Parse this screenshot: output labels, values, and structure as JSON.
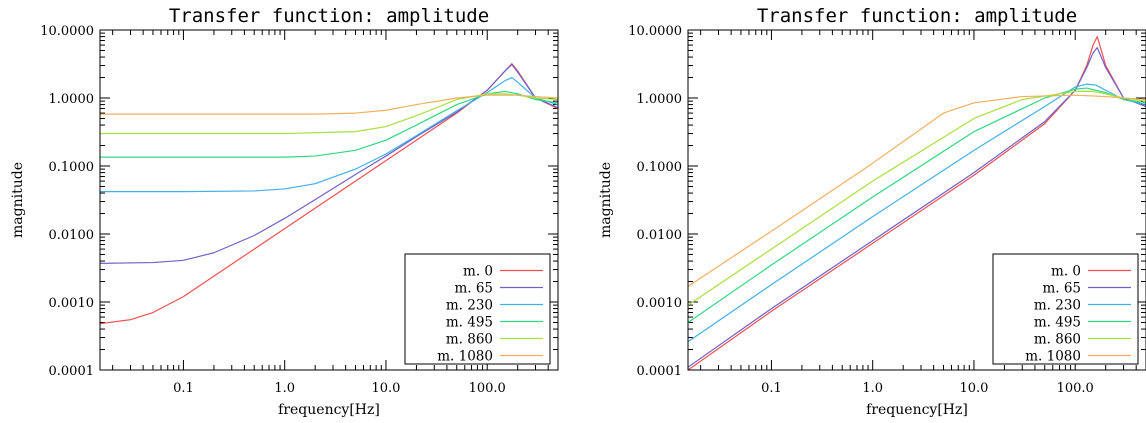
{
  "chart_data": [
    {
      "type": "line",
      "title": "Transfer function: amplitude",
      "xlabel": "frequency[Hz]",
      "ylabel": "magnitude",
      "xscale": "log",
      "yscale": "log",
      "xlim": [
        0.015,
        500
      ],
      "ylim": [
        0.0001,
        10
      ],
      "xticks": [
        "0.1",
        "1.0",
        "10.0",
        "100.0"
      ],
      "yticks": [
        "10.0000",
        "1.0000",
        "0.1000",
        "0.0100",
        "0.0010",
        "0.0001"
      ],
      "grid": false,
      "legend_position": "bottom-right",
      "series": [
        {
          "name": "m. 0",
          "color": "#f05050",
          "x": [
            0.015,
            0.03,
            0.05,
            0.1,
            0.2,
            0.5,
            1,
            2,
            5,
            10,
            20,
            50,
            100,
            150,
            175,
            200,
            300,
            500
          ],
          "y": [
            0.00048,
            0.00055,
            0.0007,
            0.0012,
            0.0024,
            0.006,
            0.012,
            0.024,
            0.06,
            0.12,
            0.24,
            0.6,
            1.3,
            2.5,
            3.2,
            2.5,
            1.0,
            0.7
          ]
        },
        {
          "name": "m. 65",
          "color": "#7060c8",
          "x": [
            0.015,
            0.05,
            0.1,
            0.2,
            0.5,
            1,
            2,
            5,
            10,
            20,
            50,
            100,
            150,
            175,
            200,
            300,
            500
          ],
          "y": [
            0.0037,
            0.0038,
            0.0041,
            0.0053,
            0.0095,
            0.017,
            0.032,
            0.075,
            0.14,
            0.27,
            0.62,
            1.3,
            2.5,
            3.1,
            2.4,
            1.0,
            0.72
          ]
        },
        {
          "name": "m. 230",
          "color": "#40b0e8",
          "x": [
            0.015,
            0.1,
            0.5,
            1,
            2,
            5,
            10,
            20,
            50,
            100,
            150,
            175,
            200,
            300,
            500
          ],
          "y": [
            0.042,
            0.042,
            0.043,
            0.046,
            0.055,
            0.09,
            0.15,
            0.28,
            0.65,
            1.2,
            1.8,
            2.0,
            1.7,
            1.0,
            0.8
          ]
        },
        {
          "name": "m. 495",
          "color": "#30d880",
          "x": [
            0.015,
            1,
            2,
            5,
            10,
            20,
            50,
            100,
            150,
            200,
            300,
            500
          ],
          "y": [
            0.135,
            0.135,
            0.14,
            0.17,
            0.24,
            0.4,
            0.8,
            1.15,
            1.25,
            1.15,
            0.95,
            0.85
          ]
        },
        {
          "name": "m. 860",
          "color": "#a8e040",
          "x": [
            0.015,
            1,
            5,
            10,
            20,
            50,
            100,
            150,
            200,
            300,
            500
          ],
          "y": [
            0.3,
            0.3,
            0.32,
            0.38,
            0.55,
            0.95,
            1.15,
            1.15,
            1.1,
            1.0,
            0.95
          ]
        },
        {
          "name": "m. 1080",
          "color": "#f0b060",
          "x": [
            0.015,
            2,
            5,
            10,
            20,
            50,
            100,
            200,
            300,
            500
          ],
          "y": [
            0.58,
            0.58,
            0.6,
            0.66,
            0.8,
            1.0,
            1.1,
            1.1,
            1.05,
            1.0
          ]
        }
      ]
    },
    {
      "type": "line",
      "title": "Transfer function: amplitude",
      "xlabel": "frequency[Hz]",
      "ylabel": "magnitude",
      "xscale": "log",
      "yscale": "log",
      "xlim": [
        0.015,
        500
      ],
      "ylim": [
        0.0001,
        10
      ],
      "xticks": [
        "0.1",
        "1.0",
        "10.0",
        "100.0"
      ],
      "yticks": [
        "10.0000",
        "1.0000",
        "0.1000",
        "0.0100",
        "0.0010",
        "0.0001"
      ],
      "grid": false,
      "legend_position": "bottom-right",
      "series": [
        {
          "name": "m. 0",
          "color": "#f05050",
          "x": [
            0.015,
            0.1,
            1,
            10,
            50,
            100,
            130,
            150,
            165,
            200,
            300,
            500
          ],
          "y": [
            0.0001,
            0.00073,
            0.0073,
            0.073,
            0.42,
            1.3,
            3.0,
            6.0,
            8.0,
            3.0,
            1.0,
            0.75
          ]
        },
        {
          "name": "m. 65",
          "color": "#7060c8",
          "x": [
            0.015,
            0.1,
            1,
            10,
            50,
            100,
            130,
            150,
            165,
            200,
            300,
            500
          ],
          "y": [
            0.00011,
            0.0008,
            0.008,
            0.08,
            0.45,
            1.3,
            2.8,
            4.6,
            5.5,
            2.8,
            1.0,
            0.75
          ]
        },
        {
          "name": "m. 230",
          "color": "#40b0e8",
          "x": [
            0.015,
            0.1,
            1,
            10,
            50,
            100,
            130,
            160,
            200,
            300,
            500
          ],
          "y": [
            0.00026,
            0.0018,
            0.018,
            0.17,
            0.75,
            1.45,
            1.6,
            1.55,
            1.3,
            0.95,
            0.8
          ]
        },
        {
          "name": "m. 495",
          "color": "#30d880",
          "x": [
            0.015,
            0.1,
            1,
            10,
            50,
            100,
            130,
            200,
            300,
            500
          ],
          "y": [
            0.0005,
            0.0035,
            0.035,
            0.32,
            1.0,
            1.35,
            1.4,
            1.2,
            0.95,
            0.85
          ]
        },
        {
          "name": "m. 860",
          "color": "#a8e040",
          "x": [
            0.015,
            0.1,
            1,
            10,
            30,
            100,
            150,
            200,
            300,
            500
          ],
          "y": [
            0.0009,
            0.006,
            0.06,
            0.5,
            0.95,
            1.25,
            1.25,
            1.15,
            1.0,
            0.9
          ]
        },
        {
          "name": "m. 1080",
          "color": "#f0b060",
          "x": [
            0.015,
            0.1,
            1,
            5,
            10,
            30,
            100,
            200,
            300,
            500
          ],
          "y": [
            0.0017,
            0.011,
            0.11,
            0.6,
            0.85,
            1.05,
            1.1,
            1.05,
            1.0,
            0.95
          ]
        }
      ]
    }
  ]
}
